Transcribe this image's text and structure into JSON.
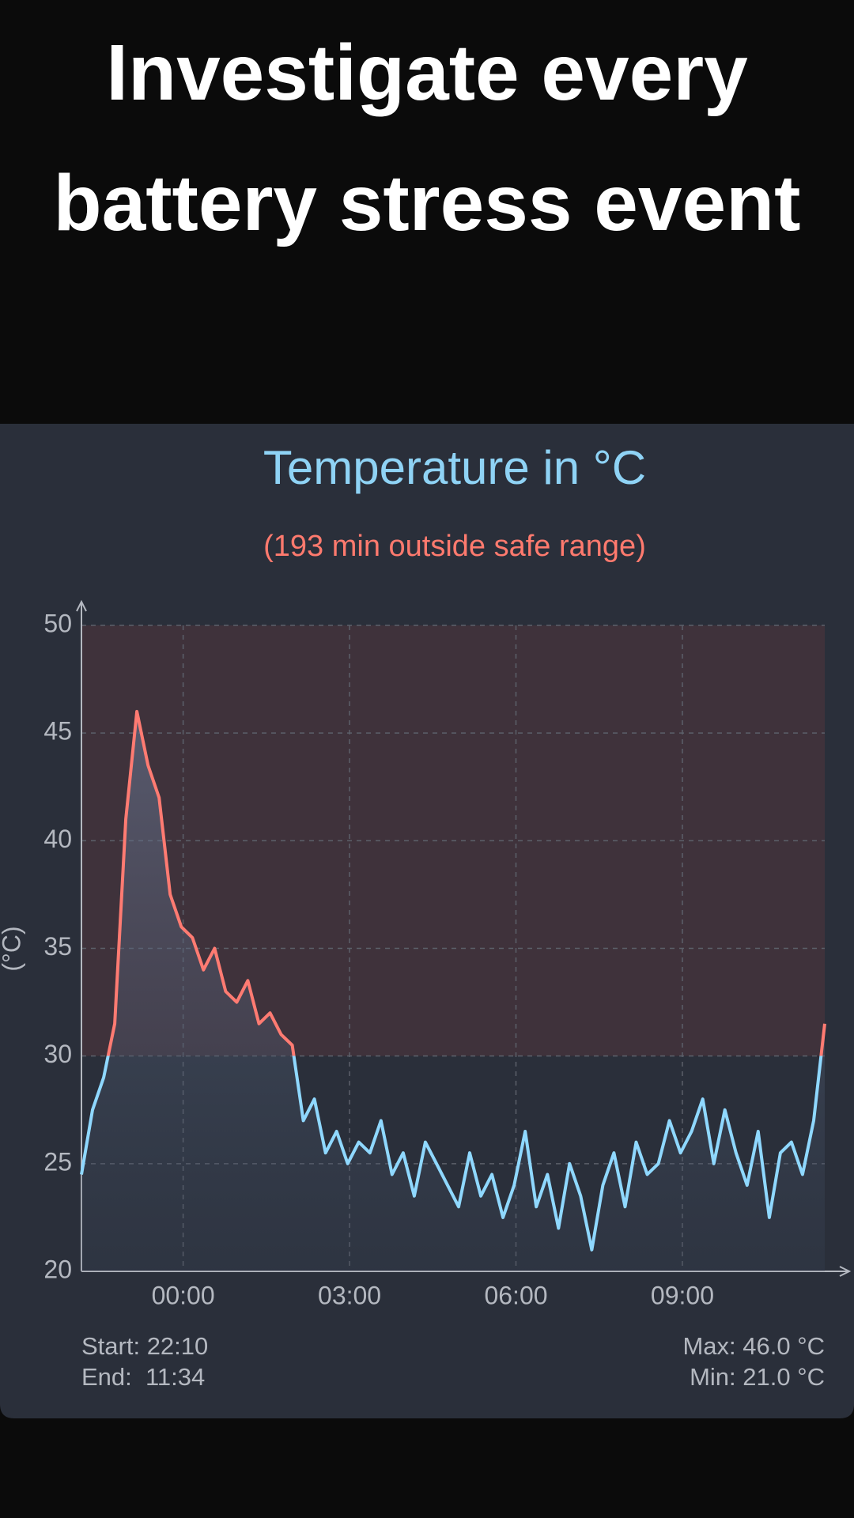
{
  "headline": "Investigate every battery stress event",
  "chart_data": {
    "type": "line",
    "title": "Temperature in °C",
    "subtitle": "(193 min outside safe range)",
    "y_label": "(°C)",
    "x": [
      "22:10",
      "22:22",
      "22:34",
      "22:46",
      "22:58",
      "23:10",
      "23:22",
      "23:34",
      "23:46",
      "23:58",
      "00:10",
      "00:22",
      "00:34",
      "00:46",
      "00:58",
      "01:10",
      "01:22",
      "01:34",
      "01:46",
      "01:58",
      "02:10",
      "02:22",
      "02:34",
      "02:46",
      "02:58",
      "03:10",
      "03:22",
      "03:34",
      "03:46",
      "03:58",
      "04:10",
      "04:22",
      "04:34",
      "04:46",
      "04:58",
      "05:10",
      "05:22",
      "05:34",
      "05:46",
      "05:58",
      "06:10",
      "06:22",
      "06:34",
      "06:46",
      "06:58",
      "07:10",
      "07:22",
      "07:34",
      "07:46",
      "07:58",
      "08:10",
      "08:22",
      "08:34",
      "08:46",
      "08:58",
      "09:10",
      "09:22",
      "09:34",
      "09:46",
      "09:58",
      "10:10",
      "10:22",
      "10:34",
      "10:46",
      "10:58",
      "11:10",
      "11:22",
      "11:34"
    ],
    "values": [
      24.5,
      27.5,
      29.0,
      31.5,
      41.0,
      46.0,
      43.5,
      42.0,
      37.5,
      36.0,
      35.5,
      34.0,
      35.0,
      33.0,
      32.5,
      33.5,
      31.5,
      32.0,
      31.0,
      30.5,
      27.0,
      28.0,
      25.5,
      26.5,
      25.0,
      26.0,
      25.5,
      27.0,
      24.5,
      25.5,
      23.5,
      26.0,
      25.0,
      24.0,
      23.0,
      25.5,
      23.5,
      24.5,
      22.5,
      24.0,
      26.5,
      23.0,
      24.5,
      22.0,
      25.0,
      23.5,
      21.0,
      24.0,
      25.5,
      23.0,
      26.0,
      24.5,
      25.0,
      27.0,
      25.5,
      26.5,
      28.0,
      25.0,
      27.5,
      25.5,
      24.0,
      26.5,
      22.5,
      25.5,
      26.0,
      24.5,
      27.0,
      31.5
    ],
    "color": "#8fd8ff",
    "color_above": "#ff7b72",
    "highlight_range": [
      30,
      50
    ],
    "xlim": [
      "22:10",
      "11:34"
    ],
    "xticks": [
      "00:00",
      "03:00",
      "06:00",
      "09:00"
    ],
    "ylim": [
      20,
      50
    ],
    "yticks": [
      20,
      25,
      30,
      35,
      40,
      45,
      50
    ],
    "grid": true,
    "start_label": "Start: 22:10",
    "end_label": "End:  11:34",
    "max_label": "Max: 46.0 °C",
    "min_label": "Min: 21.0 °C"
  }
}
